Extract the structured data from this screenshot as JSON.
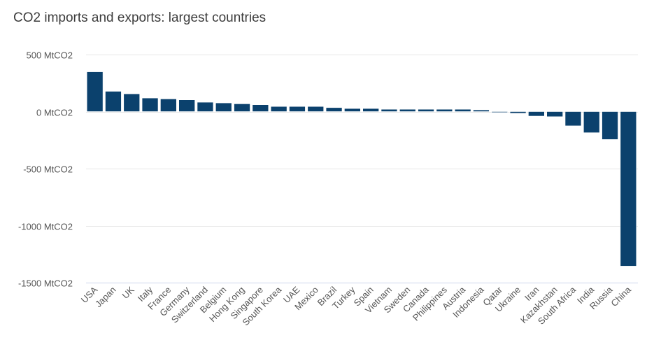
{
  "chart_data": {
    "type": "bar",
    "title": "CO2 imports and exports: largest countries",
    "xlabel": "",
    "ylabel": "",
    "unit": "MtCO2",
    "ylim": [
      -1500,
      500
    ],
    "yticks": [
      500,
      0,
      -500,
      -1000,
      -1500
    ],
    "ytick_labels": [
      "500 MtCO2",
      "0 MtCO2",
      "-500 MtCO2",
      "-1000 MtCO2",
      "-1500 MtCO2"
    ],
    "grid": true,
    "bar_color": "#0B416D",
    "categories": [
      "USA",
      "Japan",
      "UK",
      "Italy",
      "France",
      "Germany",
      "Switzerland",
      "Belgium",
      "Hong Kong",
      "Singapore",
      "South Korea",
      "UAE",
      "Mexico",
      "Brazil",
      "Turkey",
      "Spain",
      "Vietnam",
      "Sweden",
      "Canada",
      "Philippines",
      "Austria",
      "Indonesia",
      "Qatar",
      "Ukraine",
      "Iran",
      "Kazakhstan",
      "South Africa",
      "India",
      "Russia",
      "China"
    ],
    "values": [
      349,
      178,
      156,
      119,
      111,
      103,
      82,
      76,
      68,
      60,
      45,
      45,
      45,
      35,
      27,
      27,
      20,
      20,
      20,
      20,
      20,
      15,
      -8,
      -15,
      -40,
      -45,
      -125,
      -185,
      -245,
      -1355
    ]
  }
}
